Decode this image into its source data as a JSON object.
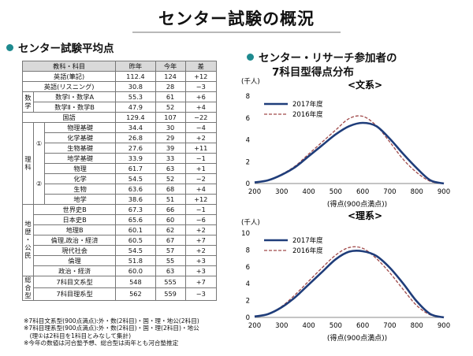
{
  "page": {
    "title": "センター試験の概況"
  },
  "left": {
    "heading": "センター試験平均点",
    "headers": [
      "教科・科目",
      "昨年",
      "今年",
      "差"
    ],
    "groups": {
      "math": "数学",
      "science": "理科",
      "science_a": "①",
      "science_b": "②",
      "social": "地歴・公民",
      "combined": "総合型"
    },
    "rows": [
      {
        "name": "英語(筆記)",
        "last": "112.4",
        "this": "124",
        "diff": "+12"
      },
      {
        "name": "英語(リスニング)",
        "last": "30.8",
        "this": "28",
        "diff": "−3"
      },
      {
        "name": "数学Ⅰ・数学A",
        "last": "55.3",
        "this": "61",
        "diff": "+6"
      },
      {
        "name": "数学Ⅱ・数学B",
        "last": "47.9",
        "this": "52",
        "diff": "+4"
      },
      {
        "name": "国語",
        "last": "129.4",
        "this": "107",
        "diff": "−22"
      },
      {
        "name": "物理基礎",
        "last": "34.4",
        "this": "30",
        "diff": "−4"
      },
      {
        "name": "化学基礎",
        "last": "26.8",
        "this": "29",
        "diff": "+2"
      },
      {
        "name": "生物基礎",
        "last": "27.6",
        "this": "39",
        "diff": "+11"
      },
      {
        "name": "地学基礎",
        "last": "33.9",
        "this": "33",
        "diff": "−1"
      },
      {
        "name": "物理",
        "last": "61.7",
        "this": "63",
        "diff": "+1"
      },
      {
        "name": "化学",
        "last": "54.5",
        "this": "52",
        "diff": "−2"
      },
      {
        "name": "生物",
        "last": "63.6",
        "this": "68",
        "diff": "+4"
      },
      {
        "name": "地学",
        "last": "38.6",
        "this": "51",
        "diff": "+12"
      },
      {
        "name": "世界史B",
        "last": "67.3",
        "this": "66",
        "diff": "−1"
      },
      {
        "name": "日本史B",
        "last": "65.6",
        "this": "60",
        "diff": "−6"
      },
      {
        "name": "地理B",
        "last": "60.1",
        "this": "62",
        "diff": "+2"
      },
      {
        "name": "倫理,政治・経済",
        "last": "60.5",
        "this": "67",
        "diff": "+7"
      },
      {
        "name": "現代社会",
        "last": "54.5",
        "this": "57",
        "diff": "+2"
      },
      {
        "name": "倫理",
        "last": "51.8",
        "this": "55",
        "diff": "+3"
      },
      {
        "name": "政治・経済",
        "last": "60.0",
        "this": "63",
        "diff": "+3"
      },
      {
        "name": "7科目文系型",
        "last": "548",
        "this": "555",
        "diff": "+7"
      },
      {
        "name": "7科目理系型",
        "last": "562",
        "this": "559",
        "diff": "−3"
      }
    ],
    "notes": [
      "※7科目文系型(900点満点):外・数(2科目)・国・理・地公(2科目)",
      "※7科目理系型(900点満点):外・数(2科目)・国・理(2科目)・地公",
      "　(理①は2科目を1科目とみなして集計)",
      "※今年の数値は河合塾予想、総合型は両年とも河合塾推定"
    ]
  },
  "right": {
    "heading": "センター・リサーチ参加者の",
    "heading2": "7科目型得点分布",
    "unit": "(千人)",
    "xlabel": "(得点(900点満点))"
  },
  "chart_data": [
    {
      "type": "line",
      "title": "<文系>",
      "x": [
        200,
        250,
        300,
        350,
        400,
        450,
        500,
        550,
        600,
        650,
        700,
        750,
        800,
        850,
        900
      ],
      "series": [
        {
          "name": "2017年度",
          "color": "#1f3d7a",
          "style": "solid",
          "values": [
            0.1,
            0.3,
            0.8,
            1.5,
            2.5,
            3.5,
            4.5,
            5.25,
            5.55,
            5.25,
            4.1,
            2.7,
            1.4,
            0.3,
            0.0
          ]
        },
        {
          "name": "2016年度",
          "color": "#a04a4a",
          "style": "dashed",
          "values": [
            0.1,
            0.3,
            0.85,
            1.6,
            2.7,
            3.8,
            4.9,
            5.95,
            6.15,
            5.3,
            3.8,
            2.2,
            1.0,
            0.2,
            0.0
          ]
        }
      ],
      "xlim": [
        200,
        900
      ],
      "ylim": [
        0,
        8
      ],
      "xticks": [
        200,
        300,
        400,
        500,
        600,
        700,
        800,
        900
      ],
      "yticks": [
        0,
        2,
        4,
        6,
        8
      ],
      "legend": "top-left"
    },
    {
      "type": "line",
      "title": "<理系>",
      "x": [
        200,
        250,
        300,
        350,
        400,
        450,
        500,
        550,
        600,
        650,
        700,
        750,
        800,
        850,
        900
      ],
      "series": [
        {
          "name": "2017年度",
          "color": "#1f3d7a",
          "style": "solid",
          "values": [
            0.1,
            0.4,
            1.2,
            2.4,
            3.9,
            5.4,
            6.9,
            7.8,
            7.85,
            7.3,
            5.9,
            4.0,
            1.9,
            0.4,
            0.0
          ]
        },
        {
          "name": "2016年度",
          "color": "#a04a4a",
          "style": "dashed",
          "values": [
            0.1,
            0.4,
            1.3,
            2.7,
            4.3,
            5.9,
            7.4,
            8.3,
            8.2,
            7.0,
            5.3,
            3.3,
            1.4,
            0.3,
            0.0
          ]
        }
      ],
      "xlim": [
        200,
        900
      ],
      "ylim": [
        0,
        10
      ],
      "xticks": [
        200,
        300,
        400,
        500,
        600,
        700,
        800,
        900
      ],
      "yticks": [
        0,
        2,
        4,
        6,
        8,
        10
      ],
      "legend": "top-left"
    }
  ]
}
